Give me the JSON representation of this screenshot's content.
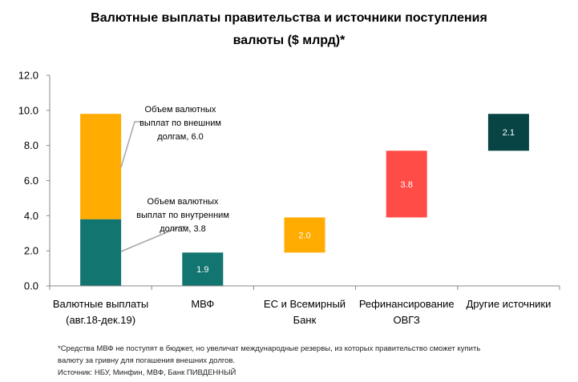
{
  "chart_data": {
    "type": "bar",
    "title_line1": "Валютные выплаты правительства и источники поступления",
    "title_line2": "валюты ($ млрд)*",
    "ylim": [
      0,
      12
    ],
    "yticks": [
      "0.0",
      "2.0",
      "4.0",
      "6.0",
      "8.0",
      "10.0",
      "12.0"
    ],
    "categories": [
      [
        "Валютные выплаты",
        "(авг.18-дек.19)"
      ],
      [
        "МВФ"
      ],
      [
        "ЕС и Всемирный",
        "Банк"
      ],
      [
        "Рефинансирование",
        "ОВГЗ"
      ],
      [
        "Другие источники"
      ]
    ],
    "bars": [
      {
        "category_index": 0,
        "base": 0,
        "value": 3.8,
        "color": "#127570",
        "label": ""
      },
      {
        "category_index": 0,
        "base": 3.8,
        "value": 6.0,
        "color": "#ffab00",
        "label": ""
      },
      {
        "category_index": 1,
        "base": 0,
        "value": 1.9,
        "color": "#127570",
        "label": "1.9"
      },
      {
        "category_index": 2,
        "base": 1.9,
        "value": 2.0,
        "color": "#ffab00",
        "label": "2.0"
      },
      {
        "category_index": 3,
        "base": 3.9,
        "value": 3.8,
        "color": "#ff4c46",
        "label": "3.8"
      },
      {
        "category_index": 4,
        "base": 7.7,
        "value": 2.1,
        "color": "#084444",
        "label": "2.1"
      }
    ],
    "annotations": [
      {
        "lines": [
          "Объем валютных",
          "выплат по внешним",
          "долгам, 6.0"
        ],
        "bar_index": 1
      },
      {
        "lines": [
          "Объем валютных",
          "выплат по внутренним",
          "долгам, 3.8"
        ],
        "bar_index": 0
      }
    ]
  },
  "footnote": {
    "line1": "*Средства МВФ не поступят в бюджет, но увеличат международные резервы, из которых правительство сможет купить",
    "line2": "валюту за гривну для погашения внешних долгов.",
    "source": "Источник: НБУ, Минфин, МВФ, Банк ПИВДЕННЫЙ"
  }
}
